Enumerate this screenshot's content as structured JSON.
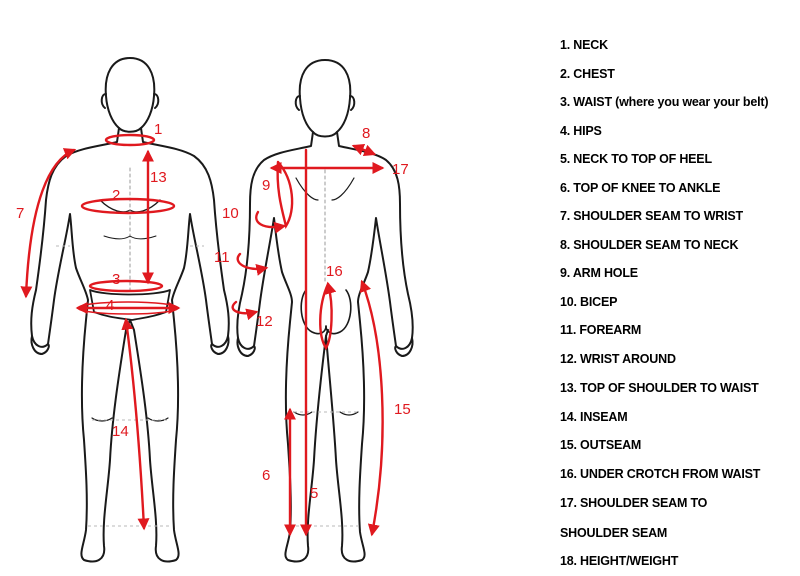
{
  "legend": {
    "items": [
      "1. NECK",
      "2. CHEST",
      "3. WAIST (where you wear your belt)",
      "4. HIPS",
      "5. NECK TO TOP OF HEEL",
      "6. TOP OF KNEE TO ANKLE",
      "7. SHOULDER SEAM TO WRIST",
      "8. SHOULDER SEAM TO NECK",
      "9. ARM HOLE",
      "10. BICEP",
      "11. FOREARM",
      "12. WRIST AROUND",
      "13. TOP OF SHOULDER TO WAIST",
      "14. INSEAM",
      "15. OUTSEAM",
      "16. UNDER CROTCH  FROM WAIST",
      "17. SHOULDER SEAM TO",
      "SHOULDER SEAM",
      "18. HEIGHT/WEIGHT"
    ]
  },
  "labels": {
    "m1": "1",
    "m2": "2",
    "m3": "3",
    "m4": "4",
    "m5": "5",
    "m6": "6",
    "m7": "7",
    "m8": "8",
    "m9": "9",
    "m10": "10",
    "m11": "11",
    "m12": "12",
    "m13": "13",
    "m14": "14",
    "m15": "15",
    "m16": "16",
    "m17": "17"
  },
  "colors": {
    "measure": "#e0191f",
    "outline": "#1a1a1a",
    "guide": "#b8b8b8"
  }
}
